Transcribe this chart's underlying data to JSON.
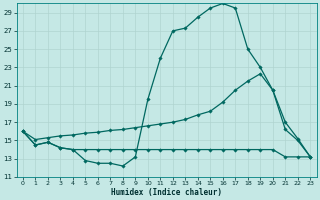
{
  "xlabel": "Humidex (Indice chaleur)",
  "bg_color": "#c5e8e5",
  "grid_color": "#b0d4d0",
  "line_color": "#006860",
  "xlim": [
    -0.5,
    23.5
  ],
  "ylim": [
    11,
    30
  ],
  "yticks": [
    11,
    13,
    15,
    17,
    19,
    21,
    23,
    25,
    27,
    29
  ],
  "xticks": [
    0,
    1,
    2,
    3,
    4,
    5,
    6,
    7,
    8,
    9,
    10,
    11,
    12,
    13,
    14,
    15,
    16,
    17,
    18,
    19,
    20,
    21,
    22,
    23
  ],
  "s1_x": [
    0,
    1,
    2,
    3,
    4,
    5,
    6,
    7,
    8,
    9,
    10,
    11,
    12,
    13,
    14,
    15,
    16,
    17,
    18,
    19,
    20,
    21,
    22,
    23
  ],
  "s1_y": [
    16.0,
    14.5,
    14.8,
    14.2,
    14.0,
    12.8,
    12.5,
    12.5,
    12.2,
    13.2,
    19.5,
    24.0,
    27.0,
    27.3,
    28.5,
    29.5,
    30.0,
    29.5,
    25.0,
    23.0,
    20.5,
    16.2,
    15.0,
    13.2
  ],
  "s2_x": [
    0,
    1,
    2,
    3,
    4,
    5,
    6,
    7,
    8,
    9,
    10,
    11,
    12,
    13,
    14,
    15,
    16,
    17,
    18,
    19,
    20,
    21,
    22,
    23
  ],
  "s2_y": [
    16.0,
    14.5,
    14.8,
    14.2,
    14.0,
    14.0,
    14.0,
    14.0,
    14.0,
    14.0,
    14.0,
    14.0,
    14.0,
    14.0,
    14.0,
    14.0,
    14.0,
    14.0,
    14.0,
    14.0,
    14.0,
    13.2,
    13.2,
    13.2
  ],
  "s3_x": [
    0,
    1,
    2,
    3,
    4,
    5,
    6,
    7,
    8,
    9,
    10,
    11,
    12,
    13,
    14,
    15,
    16,
    17,
    18,
    19,
    20,
    21,
    22,
    23
  ],
  "s3_y": [
    16.0,
    15.1,
    15.3,
    15.5,
    15.6,
    15.8,
    15.9,
    16.1,
    16.2,
    16.4,
    16.6,
    16.8,
    17.0,
    17.3,
    17.8,
    18.2,
    19.2,
    20.5,
    21.5,
    22.3,
    20.5,
    17.0,
    15.2,
    13.2
  ]
}
